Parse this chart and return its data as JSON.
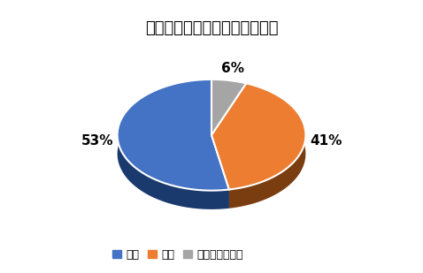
{
  "title": "セレナの乗り心地の満足度調査",
  "slices": [
    53,
    41,
    6
  ],
  "labels": [
    "満足",
    "不満",
    "どちらでもない"
  ],
  "colors": [
    "#4472C4",
    "#ED7D31",
    "#A5A5A5"
  ],
  "dark_colors": [
    "#1a3a6e",
    "#7a3d10",
    "#606060"
  ],
  "pct_labels": [
    "53%",
    "41%",
    "6%"
  ],
  "startangle": 90,
  "title_fontsize": 13,
  "legend_fontsize": 9,
  "pct_fontsize": 11,
  "background_color": "#FFFFFF"
}
